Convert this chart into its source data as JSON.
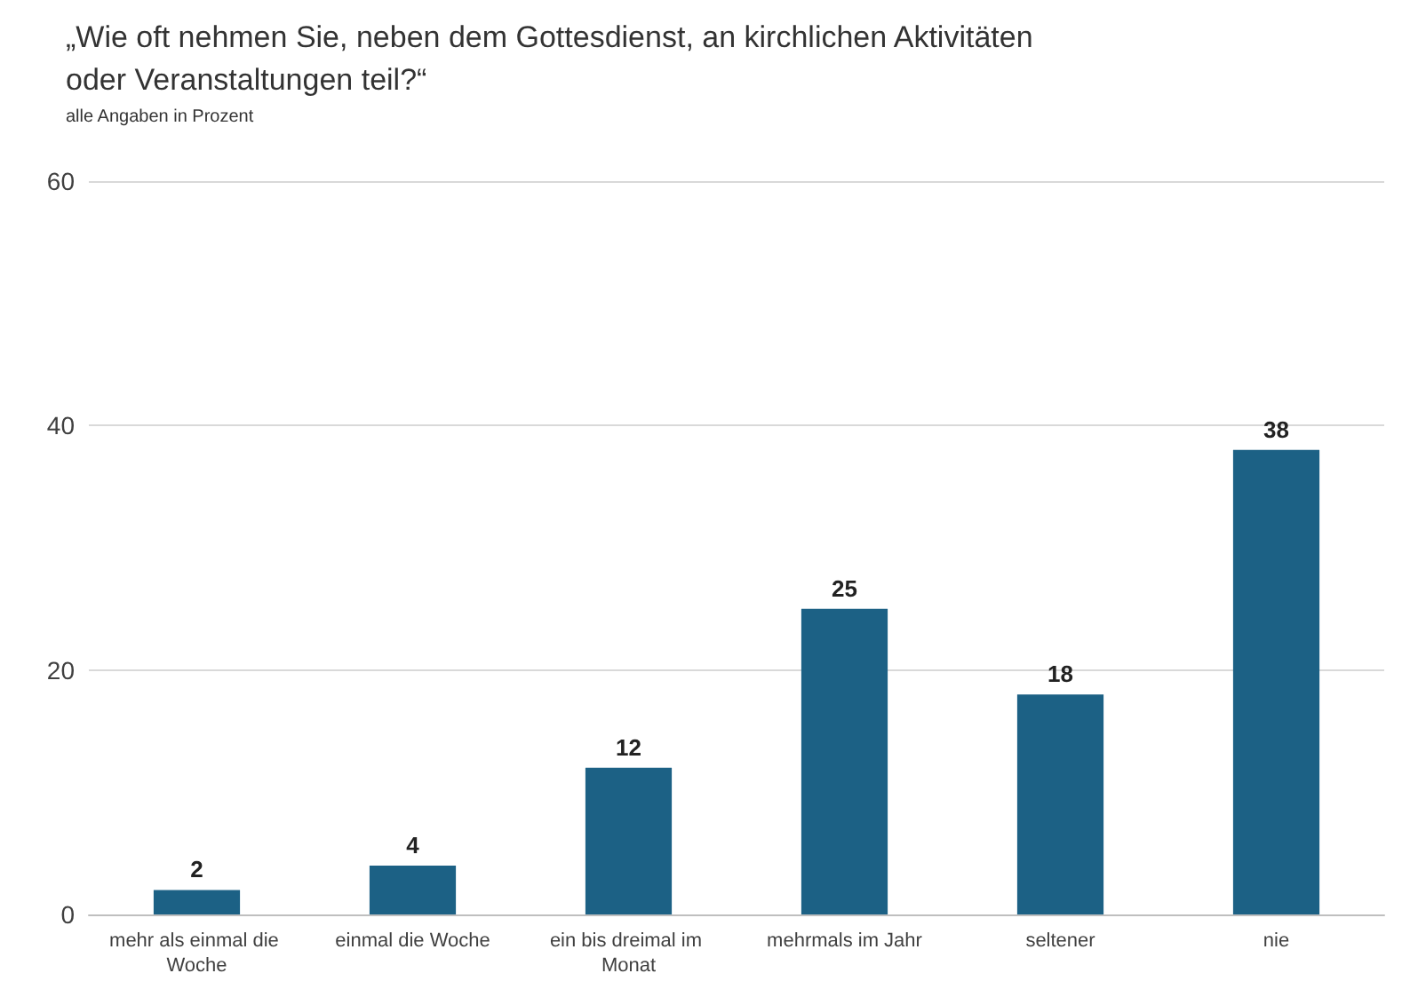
{
  "chart_data": {
    "type": "bar",
    "title": "„Wie oft nehmen Sie, neben dem Gottesdienst, an kirchlichen Aktivitäten oder Veranstaltungen teil?“",
    "subtitle": "alle Angaben in Prozent",
    "categories": [
      "mehr als einmal die Woche",
      "einmal die Woche",
      "ein bis dreimal im Monat",
      "mehrmals im Jahr",
      "seltener",
      "nie"
    ],
    "values": [
      2,
      4,
      12,
      25,
      18,
      38
    ],
    "color": "#1c6185",
    "ylim": [
      0,
      60
    ],
    "yticks": [
      0,
      20,
      40,
      60
    ],
    "grid": "y",
    "data_labels": true
  }
}
